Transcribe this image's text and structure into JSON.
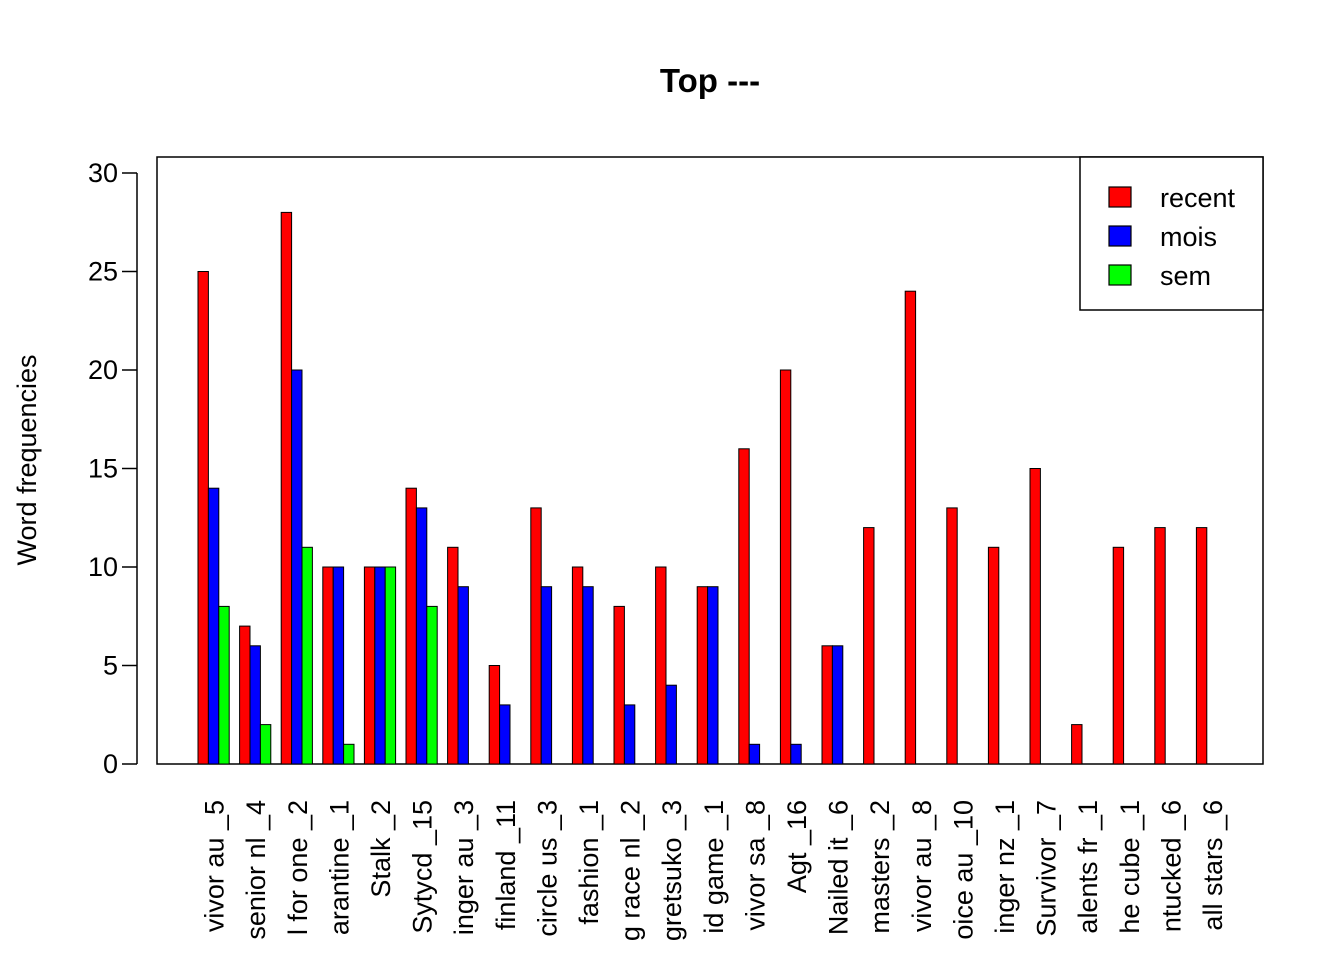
{
  "chart_data": {
    "type": "bar",
    "title": "Top ---",
    "xlabel": "",
    "ylabel": "Word frequencies",
    "ylim": [
      0,
      30
    ],
    "yticks": [
      0,
      5,
      10,
      15,
      20,
      25,
      30
    ],
    "grid": false,
    "legend_position": "top-right",
    "categories": [
      "vivor au _5",
      "senior nl _4",
      "l for one _2",
      "arantine _1",
      "Stalk _2",
      "Sytycd _15",
      "inger au _3",
      "finland _11",
      "circle us _3",
      "fashion _1",
      "g race nl _2",
      "gretsuko _3",
      "id game _1",
      "vivor sa _8",
      "Agt _16",
      "Nailed it _6",
      "masters _2",
      "vivor au _8",
      "oice au _10",
      "inger nz _1",
      "Survivor _7",
      "alents fr _1",
      "he cube _1",
      "ntucked _6",
      "all stars _6"
    ],
    "series": [
      {
        "name": "recent",
        "color": "#ff0000",
        "values": [
          25,
          7,
          28,
          10,
          10,
          14,
          11,
          5,
          13,
          10,
          8,
          10,
          9,
          16,
          20,
          6,
          12,
          24,
          13,
          11,
          15,
          2,
          11,
          12,
          12
        ]
      },
      {
        "name": "mois",
        "color": "#0000ff",
        "values": [
          14,
          6,
          20,
          10,
          10,
          13,
          9,
          3,
          9,
          9,
          3,
          4,
          9,
          1,
          1,
          6,
          0,
          0,
          0,
          0,
          0,
          0,
          0,
          0,
          0
        ]
      },
      {
        "name": "sem",
        "color": "#00ff00",
        "values": [
          8,
          2,
          11,
          1,
          10,
          8,
          0,
          0,
          0,
          0,
          0,
          0,
          0,
          0,
          0,
          0,
          0,
          0,
          0,
          0,
          0,
          0,
          0,
          0,
          0
        ]
      }
    ]
  }
}
